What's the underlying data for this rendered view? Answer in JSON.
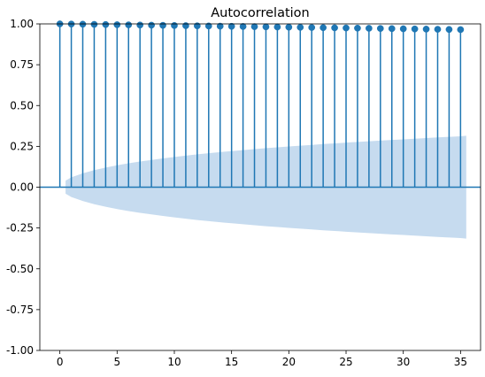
{
  "chart_data": {
    "type": "stem",
    "title": "Autocorrelation",
    "xlabel": "",
    "ylabel": "",
    "xlim": [
      -1.75,
      36.75
    ],
    "ylim": [
      -1.0,
      1.0
    ],
    "x_ticks": [
      0,
      5,
      10,
      15,
      20,
      25,
      30,
      35
    ],
    "y_ticks": [
      -1.0,
      -0.75,
      -0.5,
      -0.25,
      0.0,
      0.25,
      0.5,
      0.75,
      1.0
    ],
    "y_tick_labels": [
      "-1.00",
      "-0.75",
      "-0.50",
      "-0.25",
      "0.00",
      "0.25",
      "0.50",
      "0.75",
      "1.00"
    ],
    "grid": false,
    "lags": [
      0,
      1,
      2,
      3,
      4,
      5,
      6,
      7,
      8,
      9,
      10,
      11,
      12,
      13,
      14,
      15,
      16,
      17,
      18,
      19,
      20,
      21,
      22,
      23,
      24,
      25,
      26,
      27,
      28,
      29,
      30,
      31,
      32,
      33,
      34,
      35
    ],
    "acf": [
      1.0,
      0.999,
      0.998,
      0.997,
      0.996,
      0.995,
      0.994,
      0.993,
      0.992,
      0.991,
      0.99,
      0.989,
      0.988,
      0.987,
      0.986,
      0.985,
      0.984,
      0.983,
      0.982,
      0.981,
      0.98,
      0.979,
      0.978,
      0.977,
      0.976,
      0.975,
      0.974,
      0.973,
      0.972,
      0.971,
      0.97,
      0.969,
      0.968,
      0.967,
      0.966,
      0.965
    ],
    "confidence_band": {
      "lags": [
        0.5,
        1,
        2,
        3,
        4,
        5,
        6,
        7,
        8,
        9,
        10,
        11,
        12,
        13,
        14,
        15,
        16,
        17,
        18,
        19,
        20,
        21,
        22,
        23,
        24,
        25,
        26,
        27,
        28,
        29,
        30,
        31,
        32,
        33,
        34,
        35,
        35.5
      ],
      "upper": [
        0.04,
        0.06,
        0.085,
        0.104,
        0.12,
        0.134,
        0.146,
        0.157,
        0.167,
        0.176,
        0.185,
        0.193,
        0.201,
        0.208,
        0.215,
        0.221,
        0.227,
        0.233,
        0.239,
        0.244,
        0.249,
        0.254,
        0.259,
        0.264,
        0.268,
        0.273,
        0.277,
        0.281,
        0.285,
        0.289,
        0.293,
        0.297,
        0.301,
        0.305,
        0.308,
        0.312,
        0.315
      ]
    },
    "colors": {
      "stem": "#1f77b4",
      "marker": "#1f77b4",
      "band": "#c6dbef",
      "zero_line": "#1f77b4",
      "axes": "#000000"
    }
  }
}
